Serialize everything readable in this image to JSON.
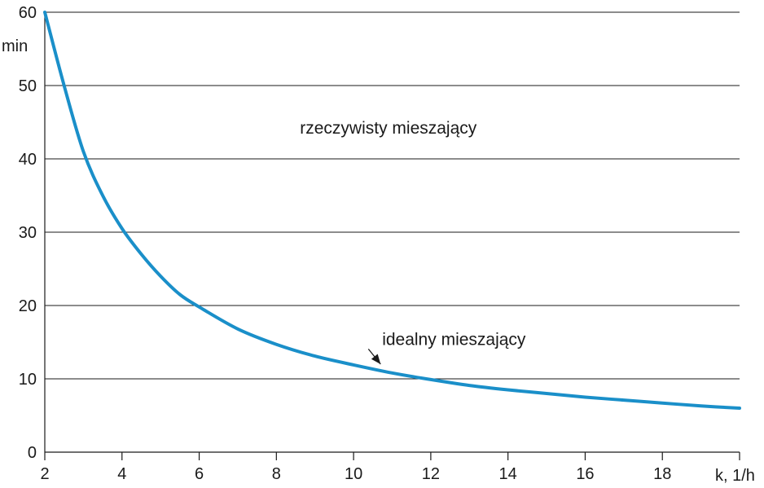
{
  "chart_data": {
    "type": "line",
    "xlabel": "k, 1/h",
    "ylabel": "min",
    "xlim": [
      2,
      20
    ],
    "ylim": [
      0,
      60
    ],
    "x_ticks": [
      2,
      4,
      6,
      8,
      10,
      12,
      14,
      16,
      18
    ],
    "y_ticks": [
      0,
      10,
      20,
      30,
      40,
      50,
      60
    ],
    "grid": "horizontal",
    "series": [
      {
        "color": "#1a8fc9",
        "x": [
          2,
          2.5,
          3,
          3.5,
          4,
          4.5,
          5,
          5.5,
          6,
          7,
          8,
          9,
          10,
          11,
          12,
          13,
          14,
          15,
          16,
          17,
          18,
          19,
          20
        ],
        "y": [
          60,
          50,
          41,
          35,
          30.5,
          27,
          24,
          21.5,
          19.8,
          16.8,
          14.7,
          13.1,
          11.9,
          10.8,
          9.9,
          9.1,
          8.5,
          8.0,
          7.5,
          7.1,
          6.7,
          6.3,
          6.0
        ]
      }
    ],
    "annotations": [
      {
        "text": "rzeczywisty mieszający",
        "x": 10.9,
        "y": 44.2
      },
      {
        "text": "idealny mieszający",
        "x": 12.6,
        "y": 15.4,
        "arrow_to": {
          "x": 10.7,
          "y": 12.0
        }
      }
    ]
  }
}
